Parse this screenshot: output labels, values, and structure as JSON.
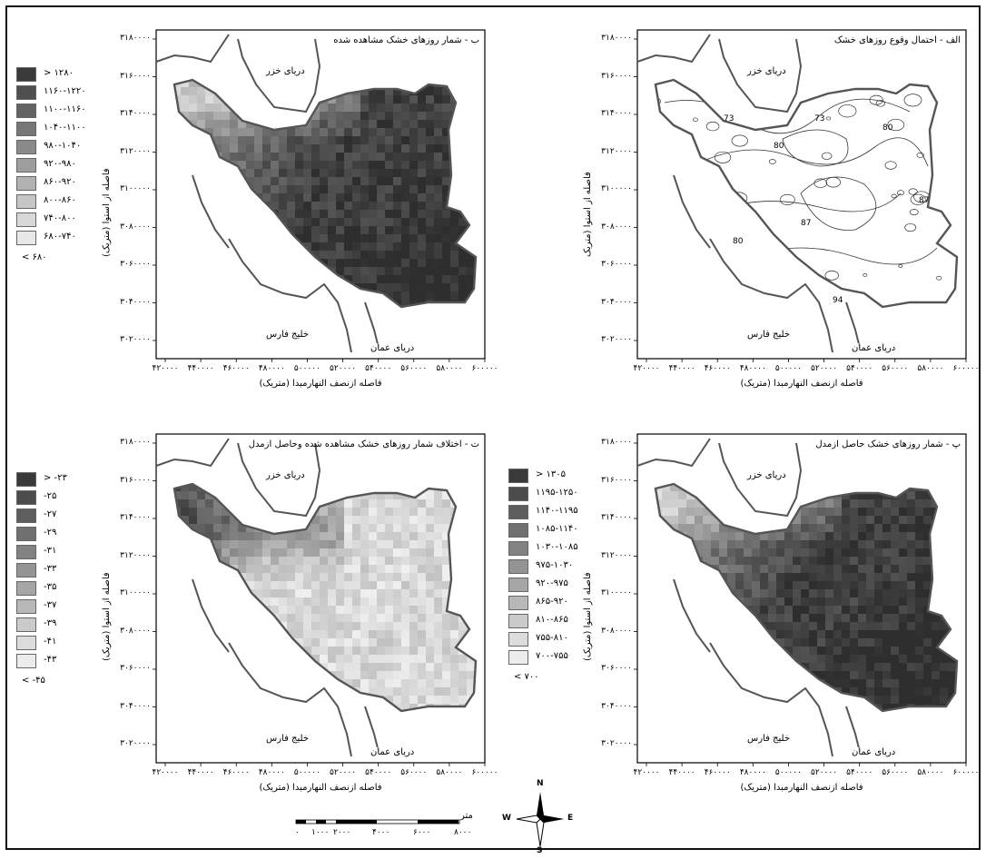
{
  "panels": [
    {
      "id": "a",
      "title": "الف - احتمال وقوع روزهای خشک",
      "style": "contour",
      "contour_labels": [
        "73",
        "73",
        "80",
        "80",
        "87",
        "87",
        "80",
        "94"
      ],
      "place_labels": {
        "caspian": "دریای خزر",
        "persian_gulf": "خلیج فارس",
        "oman_sea": "دریای عمان"
      },
      "y_ticks": [
        "۳۱۸۰۰۰۰",
        "۳۱۶۰۰۰۰",
        "۳۱۴۰۰۰۰",
        "۳۱۲۰۰۰۰",
        "۳۱۰۰۰۰۰",
        "۳۰۸۰۰۰۰",
        "۳۰۶۰۰۰۰",
        "۳۰۴۰۰۰۰",
        "۳۰۲۰۰۰۰"
      ],
      "x_ticks": [
        "۴۲۰۰۰۰",
        "۴۴۰۰۰۰",
        "۴۶۰۰۰۰",
        "۴۸۰۰۰۰",
        "۵۰۰۰۰۰",
        "۵۲۰۰۰۰",
        "۵۴۰۰۰۰",
        "۵۶۰۰۰۰",
        "۵۸۰۰۰۰",
        "۶۰۰۰۰۰"
      ],
      "y_label": "فاصله از استوا (متریک",
      "x_label": "فاصله ازنصف النهارمبدا (متریک)"
    },
    {
      "id": "b",
      "title": "ب - شمار روزهای خشک مشاهده شده",
      "style": "shaded",
      "place_labels": {
        "caspian": "دریای خزر",
        "persian_gulf": "خلیج فارس",
        "oman_sea": "دریای عمان"
      },
      "y_ticks": [
        "۳۱۸۰۰۰۰",
        "۳۱۶۰۰۰۰",
        "۳۱۴۰۰۰۰",
        "۳۱۲۰۰۰۰",
        "۳۱۰۰۰۰۰",
        "۳۰۸۰۰۰۰",
        "۳۰۶۰۰۰۰",
        "۳۰۴۰۰۰۰",
        "۳۰۲۰۰۰۰"
      ],
      "x_ticks": [
        "۴۲۰۰۰۰",
        "۴۴۰۰۰۰",
        "۴۶۰۰۰۰",
        "۴۸۰۰۰۰",
        "۵۰۰۰۰۰",
        "۵۲۰۰۰۰",
        "۵۴۰۰۰۰",
        "۵۶۰۰۰۰",
        "۵۸۰۰۰۰",
        "۶۰۰۰۰۰"
      ],
      "y_label": "فاصله از استوا (متریک)",
      "x_label": "فاصله ازنصف النهارمبدا (متریک)"
    },
    {
      "id": "p",
      "title": "پ - شمار روزهای خشک حاصل ازمدل",
      "style": "shaded",
      "place_labels": {
        "caspian": "دریای خزر",
        "persian_gulf": "خلیج فارس",
        "oman_sea": "دریای عمان"
      },
      "y_ticks": [
        "۳۱۸۰۰۰۰",
        "۳۱۶۰۰۰۰",
        "۳۱۴۰۰۰۰",
        "۳۱۲۰۰۰۰",
        "۳۱۰۰۰۰۰",
        "۳۰۸۰۰۰۰",
        "۳۰۶۰۰۰۰",
        "۳۰۴۰۰۰۰",
        "۳۰۲۰۰۰۰"
      ],
      "x_ticks": [
        "۴۲۰۰۰۰",
        "۴۴۰۰۰۰",
        "۴۶۰۰۰۰",
        "۴۸۰۰۰۰",
        "۵۰۰۰۰۰",
        "۵۲۰۰۰۰",
        "۵۴۰۰۰۰",
        "۵۶۰۰۰۰",
        "۵۸۰۰۰۰",
        "۶۰۰۰۰۰"
      ],
      "y_label": "فاصله از استوا (متریک)",
      "x_label": "فاصله ازنصف النهارمبدا (متریک)"
    },
    {
      "id": "t",
      "title": "ت - اختلاف شمار روزهای خشک مشاهده شده وحاصل ازمدل",
      "style": "shaded",
      "place_labels": {
        "caspian": "دریای خزر",
        "persian_gulf": "خلیج فارس",
        "oman_sea": "دریای عمان"
      },
      "y_ticks": [
        "۳۱۸۰۰۰۰",
        "۳۱۶۰۰۰۰",
        "۳۱۴۰۰۰۰",
        "۳۱۲۰۰۰۰",
        "۳۱۰۰۰۰۰",
        "۳۰۸۰۰۰۰",
        "۳۰۶۰۰۰۰",
        "۳۰۴۰۰۰۰",
        "۳۰۲۰۰۰۰"
      ],
      "x_ticks": [
        "۴۲۰۰۰۰",
        "۴۴۰۰۰۰",
        "۴۶۰۰۰۰",
        "۴۸۰۰۰۰",
        "۵۰۰۰۰۰",
        "۵۲۰۰۰۰",
        "۵۴۰۰۰۰",
        "۵۶۰۰۰۰",
        "۵۸۰۰۰۰",
        "۶۰۰۰۰۰"
      ],
      "y_label": "فاصله از استوا (متریک)",
      "x_label": "فاصله ازنصف النهارمبدا (متریک)"
    }
  ],
  "legends": {
    "observed": {
      "classes": [
        "> ۱۲۸۰",
        "۱۱۶۰-۱۲۲۰",
        "۱۱۰۰-۱۱۶۰",
        "۱۰۴۰-۱۱۰۰",
        "۹۸۰-۱۰۴۰",
        "۹۲۰-۹۸۰",
        "۸۶۰-۹۲۰",
        "۸۰۰-۸۶۰",
        "۷۴۰-۸۰۰",
        "۶۸۰-۷۴۰"
      ],
      "shades": [
        "#3a3a3a",
        "#4f4f4f",
        "#636363",
        "#777777",
        "#8a8a8a",
        "#9e9e9e",
        "#b2b2b2",
        "#c6c6c6",
        "#d8d8d8",
        "#e8e8e8"
      ],
      "last": "< ۶۸۰"
    },
    "model": {
      "classes": [
        "> ۱۳۰۵",
        "۱۱۹۵-۱۲۵۰",
        "۱۱۴۰-۱۱۹۵",
        "۱۰۸۵-۱۱۴۰",
        "۱۰۳۰-۱۰۸۵",
        "۹۷۵-۱۰۳۰",
        "۹۲۰-۹۷۵",
        "۸۶۵-۹۲۰",
        "۸۱۰-۸۶۵",
        "۷۵۵-۸۱۰",
        "۷۰۰-۷۵۵"
      ],
      "shades": [
        "#3a3a3a",
        "#4c4c4c",
        "#5e5e5e",
        "#707070",
        "#828282",
        "#949494",
        "#a6a6a6",
        "#b8b8b8",
        "#cacaca",
        "#dcdcdc",
        "#ececec"
      ],
      "last": "< ۷۰۰"
    },
    "difference": {
      "classes": [
        "> -۲۳",
        "-۲۵",
        "-۲۷",
        "-۲۹",
        "-۳۱",
        "-۳۳",
        "-۳۵",
        "-۳۷",
        "-۳۹",
        "-۴۱",
        "-۴۳"
      ],
      "shades": [
        "#3a3a3a",
        "#4c4c4c",
        "#5e5e5e",
        "#707070",
        "#828282",
        "#949494",
        "#a6a6a6",
        "#b8b8b8",
        "#cacaca",
        "#dcdcdc",
        "#ececec"
      ],
      "last": "< -۴۵"
    }
  },
  "scalebar": {
    "unit": "متر",
    "ticks": [
      "۰",
      "۱۰۰۰",
      "۲۰۰۰",
      "۴۰۰۰",
      "۶۰۰۰",
      "۸۰۰۰"
    ]
  },
  "compass": {
    "n": "N",
    "s": "S",
    "e": "E",
    "w": "W"
  }
}
